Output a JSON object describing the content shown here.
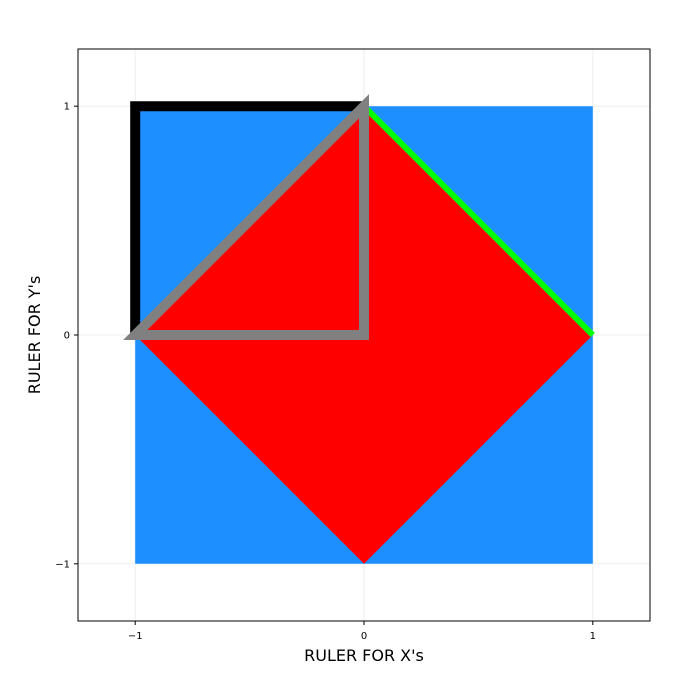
{
  "chart_data": {
    "type": "area",
    "xlabel": "RULER FOR X's",
    "ylabel": "RULER FOR Y's",
    "xlim": [
      -1.25,
      1.25
    ],
    "ylim": [
      -1.25,
      1.25
    ],
    "xticks": [
      -1,
      0,
      1
    ],
    "yticks": [
      -1,
      0,
      1
    ],
    "xtick_labels": [
      "−1",
      "0",
      "1"
    ],
    "ytick_labels": [
      "−1",
      "0",
      "1"
    ],
    "grid": true,
    "legend": "none",
    "shapes": [
      {
        "kind": "filled-square",
        "points": [
          [
            -1,
            -1
          ],
          [
            1,
            -1
          ],
          [
            1,
            1
          ],
          [
            -1,
            1
          ]
        ],
        "color": "#1e8fff"
      },
      {
        "kind": "filled-diamond",
        "points": [
          [
            0,
            1
          ],
          [
            1,
            0
          ],
          [
            0,
            -1
          ],
          [
            -1,
            0
          ]
        ],
        "color": "#ff0000"
      },
      {
        "kind": "open-path",
        "points": [
          [
            -1,
            0
          ],
          [
            -1,
            1
          ],
          [
            0,
            1
          ]
        ],
        "color": "#000000"
      },
      {
        "kind": "open-path",
        "points": [
          [
            0,
            1
          ],
          [
            1,
            0
          ]
        ],
        "color": "#00ff00"
      },
      {
        "kind": "closed-triangle",
        "points": [
          [
            -1,
            0
          ],
          [
            0,
            1
          ],
          [
            0,
            0
          ]
        ],
        "color": "#808080"
      }
    ]
  }
}
